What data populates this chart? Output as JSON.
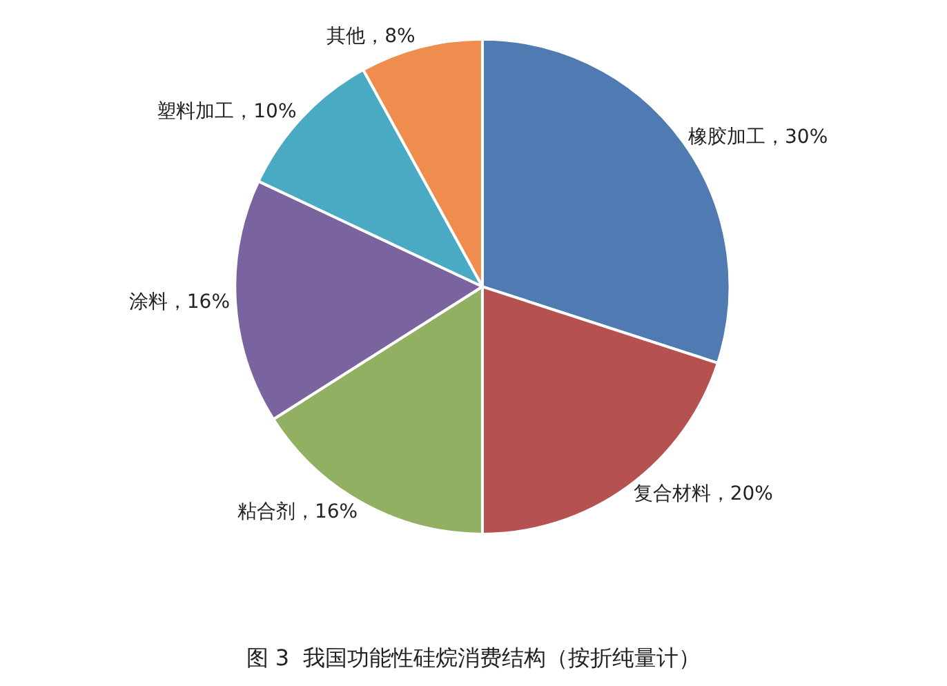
{
  "chart_data": {
    "type": "pie",
    "title": "图 3  我国功能性硅烷消费结构（按折纯量计）",
    "categories": [
      "橡胶加工",
      "复合材料",
      "粘合剂",
      "涂料",
      "塑料加工",
      "其他"
    ],
    "values": [
      30,
      20,
      16,
      16,
      10,
      8
    ],
    "value_labels": [
      "30%",
      "20%",
      "16%",
      "16%",
      "10%",
      "8%"
    ],
    "colors": [
      "#4f7bb2",
      "#b55151",
      "#92b061",
      "#7a64a0",
      "#4aaac3",
      "#ef8d4e"
    ],
    "legend": false
  }
}
